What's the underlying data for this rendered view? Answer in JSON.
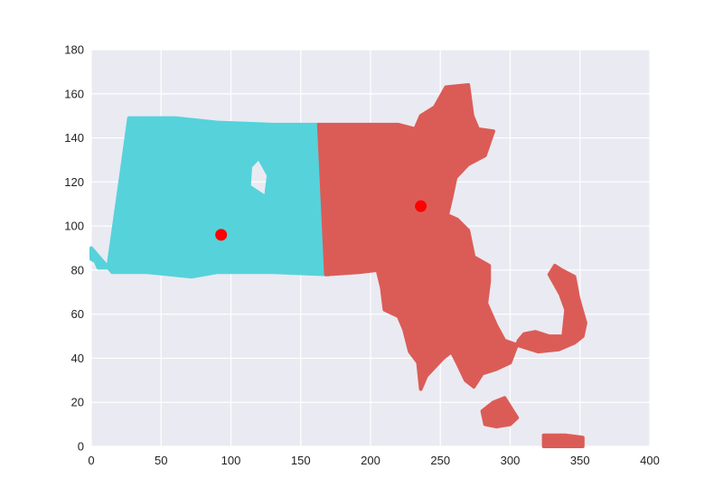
{
  "chart_data": {
    "type": "scatter",
    "title": "",
    "xlabel": "",
    "ylabel": "",
    "xlim": [
      0,
      400
    ],
    "ylim": [
      0,
      180
    ],
    "xticks": [
      0,
      50,
      100,
      150,
      200,
      250,
      300,
      350,
      400
    ],
    "yticks": [
      0,
      20,
      40,
      60,
      80,
      100,
      120,
      140,
      160,
      180
    ],
    "grid": true,
    "legend": "none",
    "colors": {
      "background": "#eaeaf2",
      "grid": "#ffffff",
      "cluster_west": "#56d2db",
      "cluster_east": "#db5c56",
      "centroid": "#ff0000"
    },
    "series": [
      {
        "color": "cluster_west",
        "outline": [
          [
            0,
            90
          ],
          [
            0,
            85
          ],
          [
            3,
            84
          ],
          [
            5,
            81
          ],
          [
            12,
            81
          ],
          [
            20,
            117
          ],
          [
            27,
            149
          ],
          [
            60,
            149
          ],
          [
            90,
            147
          ],
          [
            130,
            146
          ],
          [
            163,
            146
          ],
          [
            170,
            78
          ],
          [
            130,
            79
          ],
          [
            90,
            79
          ],
          [
            72,
            77
          ],
          [
            40,
            79
          ],
          [
            15,
            79
          ]
        ],
        "holes": [
          [
            [
              113,
              118
            ],
            [
              125,
              113
            ],
            [
              127,
              123
            ],
            [
              120,
              131
            ],
            [
              114,
              127
            ]
          ]
        ]
      },
      {
        "color": "cluster_east",
        "outline": [
          [
            163,
            146
          ],
          [
            220,
            146
          ],
          [
            232,
            144
          ],
          [
            236,
            150
          ],
          [
            246,
            154
          ],
          [
            254,
            163
          ],
          [
            270,
            164
          ],
          [
            273,
            150
          ],
          [
            277,
            144
          ],
          [
            288,
            143
          ],
          [
            282,
            132
          ],
          [
            270,
            128
          ],
          [
            261,
            122
          ],
          [
            258,
            113
          ],
          [
            255,
            105
          ],
          [
            262,
            103
          ],
          [
            270,
            98
          ],
          [
            274,
            86
          ],
          [
            285,
            82
          ],
          [
            285,
            75
          ],
          [
            283,
            65
          ],
          [
            290,
            55
          ],
          [
            296,
            48
          ],
          [
            305,
            46
          ],
          [
            320,
            43
          ],
          [
            335,
            44
          ],
          [
            346,
            47
          ],
          [
            352,
            50
          ],
          [
            354,
            56
          ],
          [
            349,
            67
          ],
          [
            346,
            77
          ],
          [
            337,
            80
          ],
          [
            332,
            82
          ],
          [
            328,
            78
          ],
          [
            336,
            69
          ],
          [
            340,
            62
          ],
          [
            338,
            50
          ],
          [
            328,
            50
          ],
          [
            318,
            52
          ],
          [
            310,
            51
          ],
          [
            306,
            48
          ],
          [
            303,
            43
          ],
          [
            300,
            38
          ],
          [
            290,
            35
          ],
          [
            280,
            33
          ],
          [
            274,
            27
          ],
          [
            268,
            30
          ],
          [
            262,
            38
          ],
          [
            258,
            43
          ],
          [
            252,
            40
          ],
          [
            240,
            32
          ],
          [
            236,
            26
          ],
          [
            234,
            38
          ],
          [
            228,
            43
          ],
          [
            224,
            53
          ],
          [
            220,
            59
          ],
          [
            210,
            62
          ],
          [
            208,
            72
          ],
          [
            205,
            80
          ],
          [
            192,
            79
          ],
          [
            168,
            78
          ]
        ]
      },
      {
        "color": "cluster_east",
        "outline": [
          [
            280,
            16
          ],
          [
            288,
            20
          ],
          [
            296,
            22
          ],
          [
            300,
            18
          ],
          [
            305,
            13
          ],
          [
            300,
            10
          ],
          [
            290,
            9
          ],
          [
            282,
            10
          ]
        ]
      },
      {
        "color": "cluster_east",
        "outline": [
          [
            324,
            5
          ],
          [
            340,
            5
          ],
          [
            352,
            4
          ],
          [
            352,
            0
          ],
          [
            324,
            0
          ]
        ]
      }
    ],
    "centroids": [
      {
        "x": 93,
        "y": 96
      },
      {
        "x": 236,
        "y": 109
      }
    ]
  }
}
